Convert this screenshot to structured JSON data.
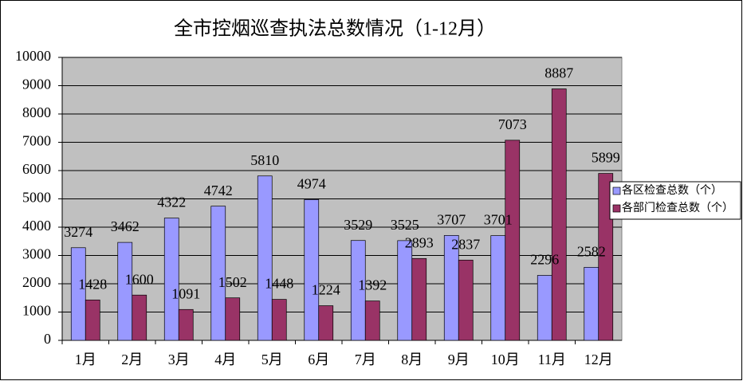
{
  "chart_data": {
    "type": "bar",
    "title": "全市控烟巡查执法总数情况（1-12月）",
    "categories": [
      "1月",
      "2月",
      "3月",
      "4月",
      "5月",
      "6月",
      "7月",
      "8月",
      "9月",
      "10月",
      "11月",
      "12月"
    ],
    "series": [
      {
        "name": "各区检查总数（个）",
        "color": "#9999ff",
        "values": [
          3274,
          3462,
          4322,
          4742,
          5810,
          4974,
          3529,
          3525,
          3707,
          3701,
          2296,
          2582
        ]
      },
      {
        "name": "各部门检查总数（个）",
        "color": "#993366",
        "values": [
          1428,
          1600,
          1091,
          1502,
          1448,
          1224,
          1392,
          2893,
          2837,
          7073,
          8887,
          5899
        ]
      }
    ],
    "ylim": [
      0,
      10000
    ],
    "yticks": [
      0,
      1000,
      2000,
      3000,
      4000,
      5000,
      6000,
      7000,
      8000,
      9000,
      10000
    ],
    "grid": true,
    "legend": "right",
    "plot_background": "#c0c0c0"
  }
}
